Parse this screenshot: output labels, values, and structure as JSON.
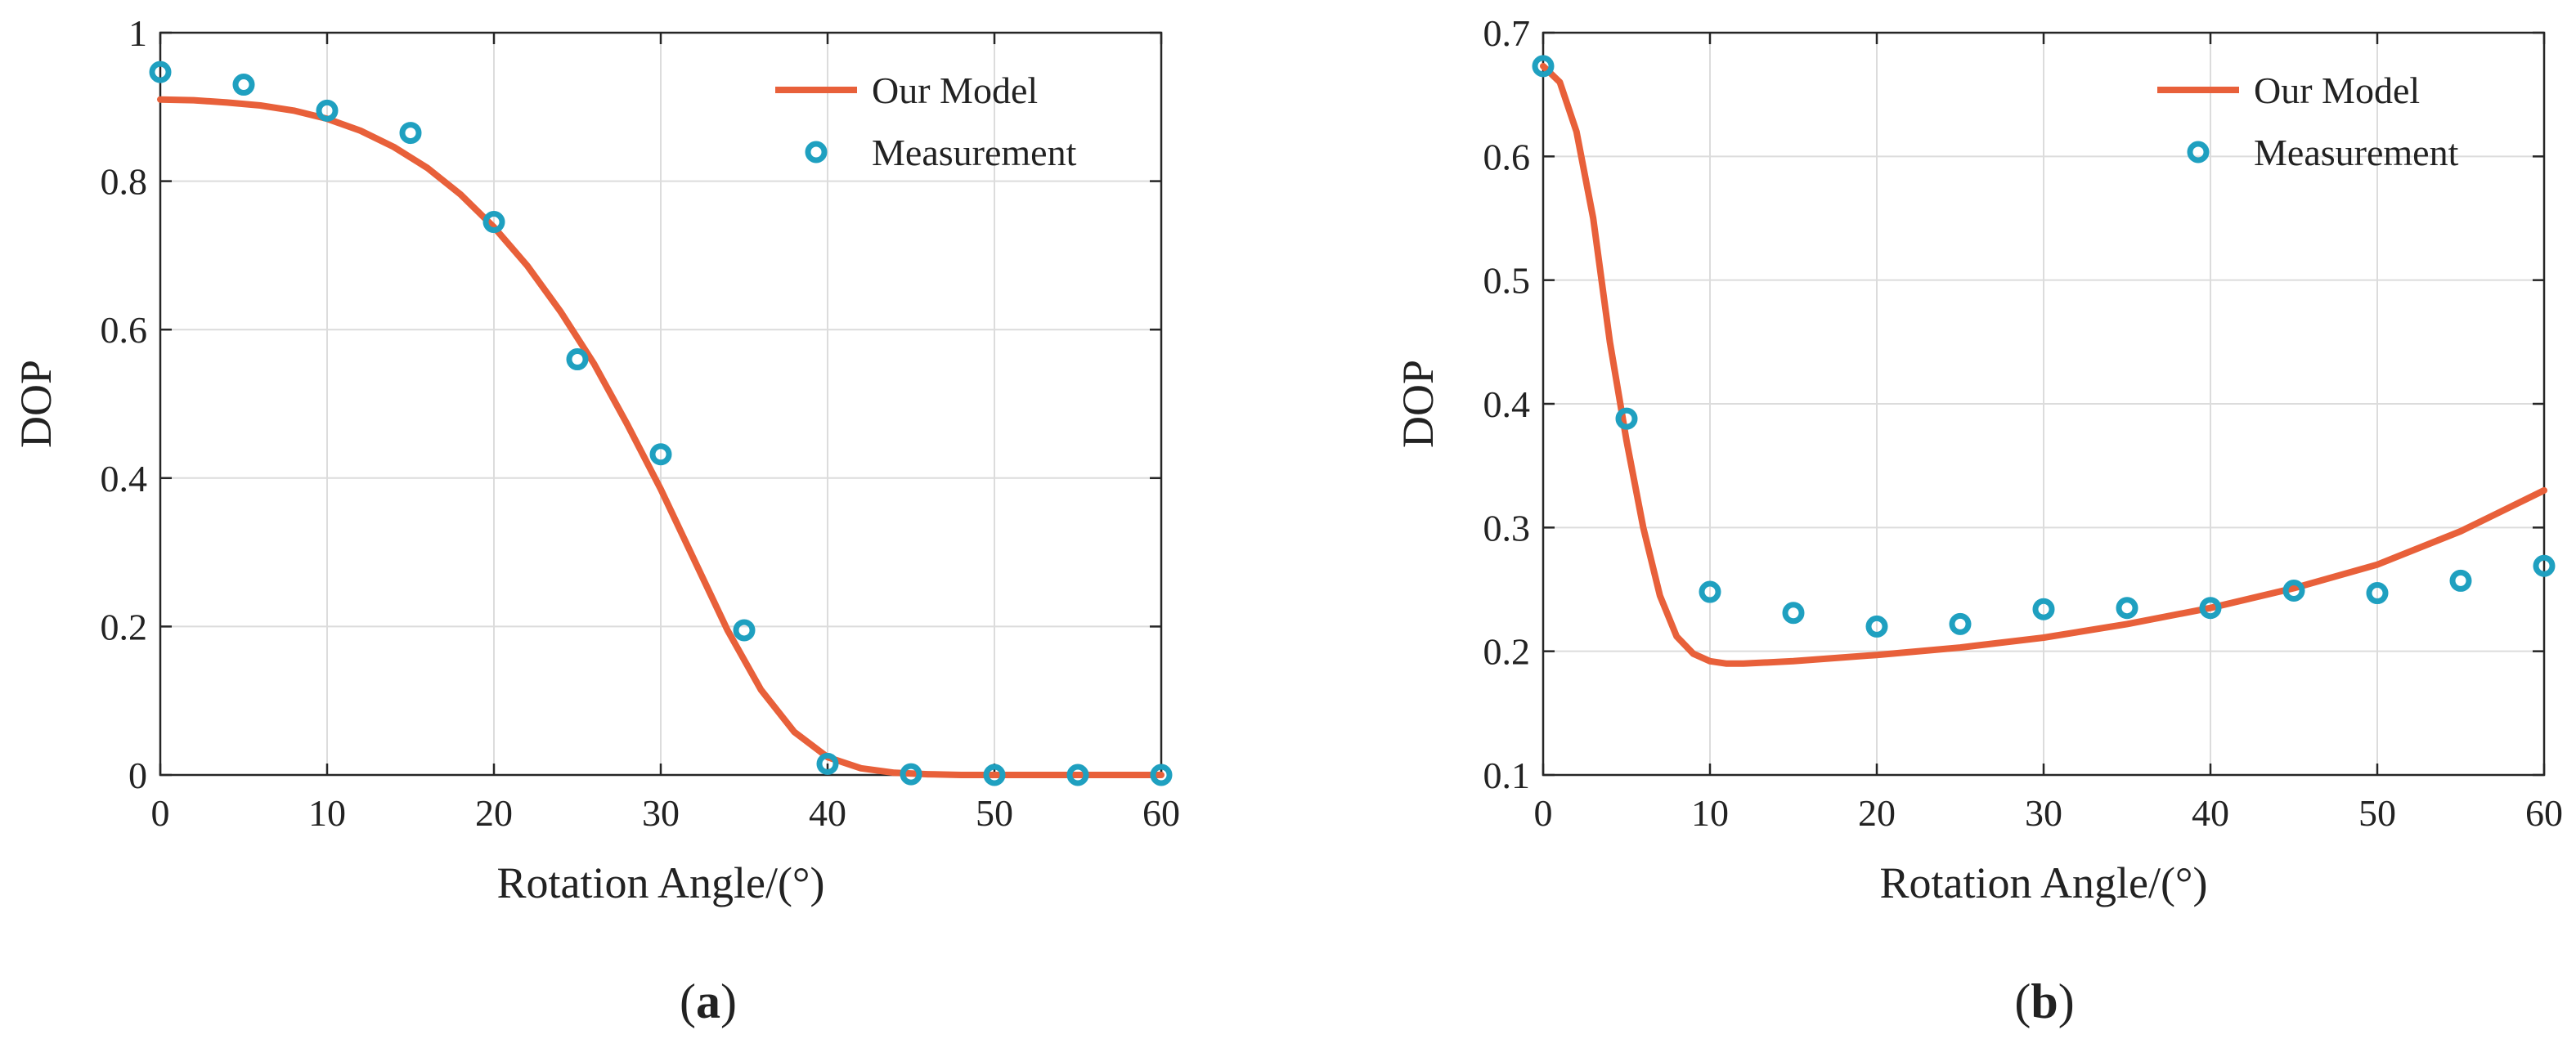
{
  "chart_data": [
    {
      "type": "line+scatter",
      "panel_label": "a",
      "xlabel": "Rotation Angle/(°)",
      "ylabel": "DOP",
      "xlim": [
        0,
        60
      ],
      "ylim": [
        0,
        1
      ],
      "xticks": [
        0,
        10,
        20,
        30,
        40,
        50,
        60
      ],
      "yticks": [
        0,
        0.2,
        0.4,
        0.6,
        0.8,
        1
      ],
      "ytick_labels": [
        "0",
        "0.2",
        "0.4",
        "0.6",
        "0.8",
        "1"
      ],
      "grid": true,
      "legend_position": "top-right",
      "legend": [
        "Our Model",
        "Measurement"
      ],
      "series": [
        {
          "name": "Our Model",
          "kind": "line",
          "color": "#E8603A",
          "x": [
            0,
            2,
            4,
            6,
            8,
            10,
            12,
            14,
            16,
            18,
            20,
            22,
            24,
            26,
            28,
            30,
            32,
            34,
            36,
            38,
            40,
            42,
            44,
            46,
            48,
            50,
            52,
            54,
            56,
            58,
            60
          ],
          "y": [
            0.91,
            0.909,
            0.906,
            0.902,
            0.895,
            0.884,
            0.868,
            0.846,
            0.818,
            0.782,
            0.738,
            0.686,
            0.624,
            0.554,
            0.472,
            0.385,
            0.29,
            0.195,
            0.115,
            0.058,
            0.024,
            0.009,
            0.003,
            0.001,
            0,
            0,
            0,
            0,
            0,
            0,
            0
          ]
        },
        {
          "name": "Measurement",
          "kind": "scatter",
          "color": "#1FA0C0",
          "x": [
            0,
            5,
            10,
            15,
            20,
            25,
            30,
            35,
            40,
            45,
            50,
            55,
            60
          ],
          "y": [
            0.947,
            0.93,
            0.895,
            0.865,
            0.745,
            0.56,
            0.432,
            0.195,
            0.015,
            0.001,
            0,
            0,
            0
          ]
        }
      ]
    },
    {
      "type": "line+scatter",
      "panel_label": "b",
      "xlabel": "Rotation Angle/(°)",
      "ylabel": "DOP",
      "xlim": [
        0,
        60
      ],
      "ylim": [
        0.1,
        0.7
      ],
      "xticks": [
        0,
        10,
        20,
        30,
        40,
        50,
        60
      ],
      "yticks": [
        0.1,
        0.2,
        0.3,
        0.4,
        0.5,
        0.6,
        0.7
      ],
      "ytick_labels": [
        "0.1",
        "0.2",
        "0.3",
        "0.4",
        "0.5",
        "0.6",
        "0.7"
      ],
      "grid": true,
      "legend_position": "top-right",
      "legend": [
        "Our Model",
        "Measurement"
      ],
      "series": [
        {
          "name": "Our Model",
          "kind": "line",
          "color": "#E8603A",
          "x": [
            0,
            1,
            2,
            3,
            4,
            5,
            6,
            7,
            8,
            9,
            10,
            11,
            12,
            15,
            20,
            25,
            30,
            35,
            40,
            45,
            50,
            55,
            60
          ],
          "y": [
            0.673,
            0.66,
            0.62,
            0.55,
            0.45,
            0.37,
            0.3,
            0.245,
            0.212,
            0.198,
            0.192,
            0.19,
            0.19,
            0.192,
            0.197,
            0.203,
            0.211,
            0.222,
            0.235,
            0.251,
            0.27,
            0.297,
            0.33
          ]
        },
        {
          "name": "Measurement",
          "kind": "scatter",
          "color": "#1FA0C0",
          "x": [
            0,
            5,
            10,
            15,
            20,
            25,
            30,
            35,
            40,
            45,
            50,
            55,
            60
          ],
          "y": [
            0.673,
            0.388,
            0.248,
            0.231,
            0.22,
            0.222,
            0.234,
            0.235,
            0.235,
            0.249,
            0.247,
            0.257,
            0.269
          ]
        }
      ]
    }
  ]
}
